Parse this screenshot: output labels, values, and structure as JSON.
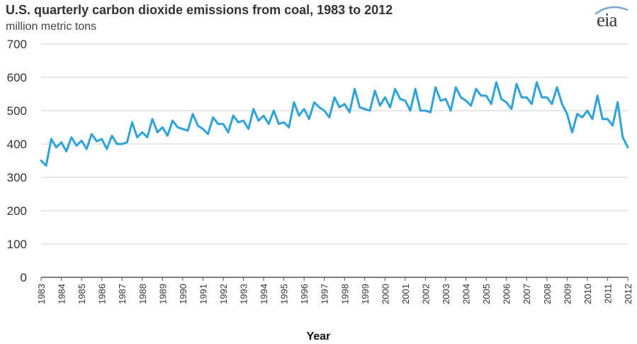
{
  "logo": {
    "text": "eia",
    "icon": "eia-logo-icon"
  },
  "colors": {
    "line": "#2ea3db",
    "grid": "#cfcfcf",
    "axis": "#555555"
  },
  "chart_data": {
    "type": "line",
    "title": "U.S. quarterly carbon dioxide emissions from coal, 1983 to 2012",
    "ylabel": "million metric tons",
    "xlabel": "Year",
    "ylim": [
      0,
      700
    ],
    "yticks": [
      0,
      100,
      200,
      300,
      400,
      500,
      600,
      700
    ],
    "xticks": [
      "1983",
      "1984",
      "1985",
      "1986",
      "1987",
      "1988",
      "1989",
      "1990",
      "1991",
      "1992",
      "1993",
      "1994",
      "1995",
      "1996",
      "1997",
      "1998",
      "1999",
      "2000",
      "2001",
      "2002",
      "2003",
      "2004",
      "2005",
      "2006",
      "2007",
      "2008",
      "2009",
      "2010",
      "2011",
      "2012"
    ],
    "grid": true,
    "series": [
      {
        "name": "",
        "frequency": "quarterly",
        "start": "1983",
        "values": [
          350,
          335,
          415,
          390,
          405,
          378,
          420,
          395,
          410,
          385,
          430,
          408,
          415,
          385,
          425,
          400,
          400,
          405,
          465,
          420,
          435,
          420,
          475,
          435,
          450,
          425,
          470,
          450,
          445,
          440,
          490,
          455,
          445,
          430,
          480,
          460,
          460,
          435,
          485,
          465,
          470,
          445,
          505,
          470,
          485,
          460,
          500,
          460,
          465,
          450,
          525,
          485,
          505,
          475,
          525,
          510,
          500,
          480,
          540,
          510,
          520,
          495,
          565,
          510,
          505,
          500,
          560,
          515,
          540,
          510,
          565,
          535,
          530,
          500,
          565,
          500,
          500,
          495,
          570,
          530,
          535,
          500,
          570,
          540,
          530,
          515,
          565,
          545,
          545,
          520,
          585,
          535,
          525,
          505,
          580,
          540,
          540,
          520,
          585,
          540,
          540,
          520,
          570,
          520,
          490,
          435,
          490,
          480,
          500,
          475,
          545,
          475,
          475,
          455,
          525,
          420,
          390
        ]
      }
    ]
  }
}
